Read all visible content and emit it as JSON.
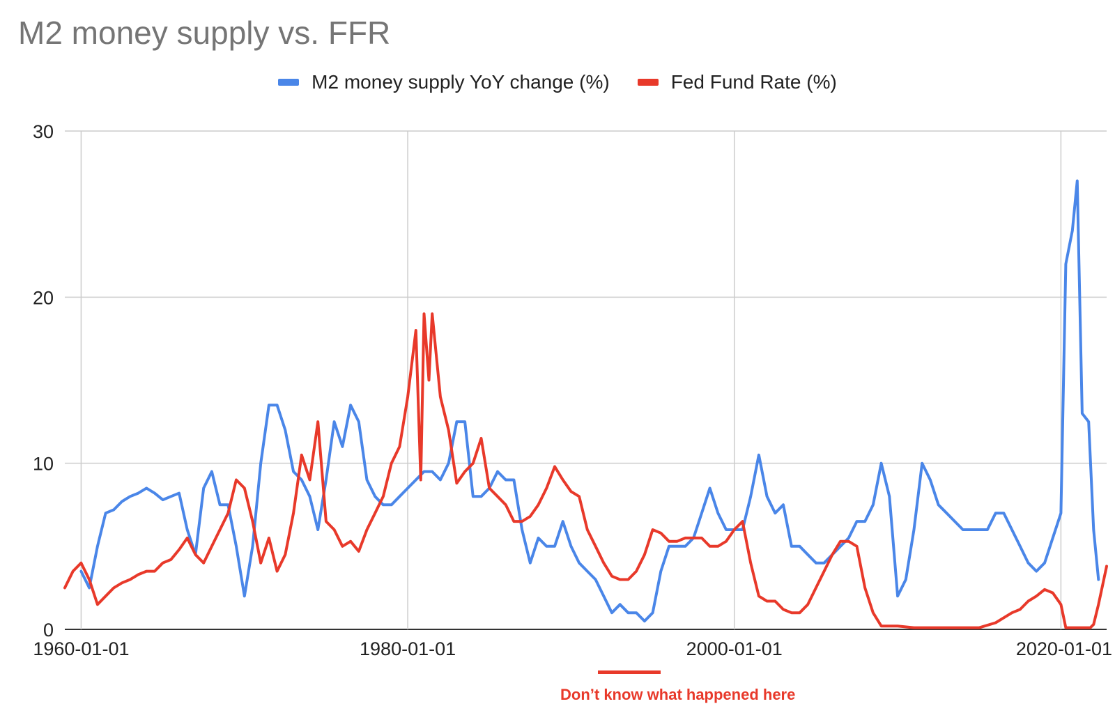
{
  "chart_data": {
    "type": "line",
    "title": "M2 money supply vs. FFR",
    "ylim": [
      0,
      30
    ],
    "yticks": [
      "0",
      "10",
      "20",
      "30"
    ],
    "xticks": [
      "1960-01-01",
      "1980-01-01",
      "2000-01-01",
      "2020-01-01"
    ],
    "x_range": [
      1959,
      2022.8
    ],
    "grid": true,
    "legend_position": "top",
    "series": [
      {
        "name": "M2 money supply YoY change (%)",
        "color": "#4a86e8",
        "points": [
          [
            1960,
            3.5
          ],
          [
            1960.5,
            2.5
          ],
          [
            1961,
            5
          ],
          [
            1961.5,
            7
          ],
          [
            1962,
            7.2
          ],
          [
            1962.5,
            7.7
          ],
          [
            1963,
            8
          ],
          [
            1963.5,
            8.2
          ],
          [
            1964,
            8.5
          ],
          [
            1964.5,
            8.2
          ],
          [
            1965,
            7.8
          ],
          [
            1965.5,
            8
          ],
          [
            1966,
            8.2
          ],
          [
            1966.5,
            6
          ],
          [
            1967,
            4.5
          ],
          [
            1967.5,
            8.5
          ],
          [
            1968,
            9.5
          ],
          [
            1968.5,
            7.5
          ],
          [
            1969,
            7.5
          ],
          [
            1969.5,
            5
          ],
          [
            1970,
            2
          ],
          [
            1970.5,
            5
          ],
          [
            1971,
            10
          ],
          [
            1971.5,
            13.5
          ],
          [
            1972,
            13.5
          ],
          [
            1972.5,
            12
          ],
          [
            1973,
            9.5
          ],
          [
            1973.5,
            9
          ],
          [
            1974,
            8
          ],
          [
            1974.5,
            6
          ],
          [
            1975,
            9
          ],
          [
            1975.5,
            12.5
          ],
          [
            1976,
            11
          ],
          [
            1976.5,
            13.5
          ],
          [
            1977,
            12.5
          ],
          [
            1977.5,
            9
          ],
          [
            1978,
            8
          ],
          [
            1978.5,
            7.5
          ],
          [
            1979,
            7.5
          ],
          [
            1979.5,
            8
          ],
          [
            1980,
            8.5
          ],
          [
            1980.5,
            9
          ],
          [
            1981,
            9.5
          ],
          [
            1981.5,
            9.5
          ],
          [
            1982,
            9
          ],
          [
            1982.5,
            10
          ],
          [
            1983,
            12.5
          ],
          [
            1983.5,
            12.5
          ],
          [
            1984,
            8
          ],
          [
            1984.5,
            8
          ],
          [
            1985,
            8.5
          ],
          [
            1985.5,
            9.5
          ],
          [
            1986,
            9
          ],
          [
            1986.5,
            9
          ],
          [
            1987,
            6
          ],
          [
            1987.5,
            4
          ],
          [
            1988,
            5.5
          ],
          [
            1988.5,
            5
          ],
          [
            1989,
            5
          ],
          [
            1989.5,
            6.5
          ],
          [
            1990,
            5
          ],
          [
            1990.5,
            4
          ],
          [
            1991,
            3.5
          ],
          [
            1991.5,
            3
          ],
          [
            1992,
            2
          ],
          [
            1992.5,
            1
          ],
          [
            1993,
            1.5
          ],
          [
            1993.5,
            1
          ],
          [
            1994,
            1
          ],
          [
            1994.5,
            0.5
          ],
          [
            1995,
            1
          ],
          [
            1995.5,
            3.5
          ],
          [
            1996,
            5
          ],
          [
            1996.5,
            5
          ],
          [
            1997,
            5
          ],
          [
            1997.5,
            5.5
          ],
          [
            1998,
            7
          ],
          [
            1998.5,
            8.5
          ],
          [
            1999,
            7
          ],
          [
            1999.5,
            6
          ],
          [
            2000,
            6
          ],
          [
            2000.5,
            6
          ],
          [
            2001,
            8
          ],
          [
            2001.5,
            10.5
          ],
          [
            2002,
            8
          ],
          [
            2002.5,
            7
          ],
          [
            2003,
            7.5
          ],
          [
            2003.5,
            5
          ],
          [
            2004,
            5
          ],
          [
            2004.5,
            4.5
          ],
          [
            2005,
            4
          ],
          [
            2005.5,
            4
          ],
          [
            2006,
            4.5
          ],
          [
            2006.5,
            5
          ],
          [
            2007,
            5.5
          ],
          [
            2007.5,
            6.5
          ],
          [
            2008,
            6.5
          ],
          [
            2008.5,
            7.5
          ],
          [
            2009,
            10
          ],
          [
            2009.5,
            8
          ],
          [
            2010,
            2
          ],
          [
            2010.5,
            3
          ],
          [
            2011,
            6
          ],
          [
            2011.5,
            10
          ],
          [
            2012,
            9
          ],
          [
            2012.5,
            7.5
          ],
          [
            2013,
            7
          ],
          [
            2013.5,
            6.5
          ],
          [
            2014,
            6
          ],
          [
            2014.5,
            6
          ],
          [
            2015,
            6
          ],
          [
            2015.5,
            6
          ],
          [
            2016,
            7
          ],
          [
            2016.5,
            7
          ],
          [
            2017,
            6
          ],
          [
            2017.5,
            5
          ],
          [
            2018,
            4
          ],
          [
            2018.5,
            3.5
          ],
          [
            2019,
            4
          ],
          [
            2019.5,
            5.5
          ],
          [
            2020,
            7
          ],
          [
            2020.3,
            22
          ],
          [
            2020.7,
            24
          ],
          [
            2021,
            27
          ],
          [
            2021.3,
            13
          ],
          [
            2021.7,
            12.5
          ],
          [
            2022,
            6
          ],
          [
            2022.3,
            3
          ]
        ]
      },
      {
        "name": "Fed Fund Rate (%)",
        "color": "#e8392a",
        "points": [
          [
            1959,
            2.5
          ],
          [
            1959.5,
            3.5
          ],
          [
            1960,
            4
          ],
          [
            1960.5,
            3
          ],
          [
            1961,
            1.5
          ],
          [
            1961.5,
            2
          ],
          [
            1962,
            2.5
          ],
          [
            1962.5,
            2.8
          ],
          [
            1963,
            3
          ],
          [
            1963.5,
            3.3
          ],
          [
            1964,
            3.5
          ],
          [
            1964.5,
            3.5
          ],
          [
            1965,
            4
          ],
          [
            1965.5,
            4.2
          ],
          [
            1966,
            4.8
          ],
          [
            1966.5,
            5.5
          ],
          [
            1967,
            4.5
          ],
          [
            1967.5,
            4
          ],
          [
            1968,
            5
          ],
          [
            1968.5,
            6
          ],
          [
            1969,
            7
          ],
          [
            1969.5,
            9
          ],
          [
            1970,
            8.5
          ],
          [
            1970.5,
            6.5
          ],
          [
            1971,
            4
          ],
          [
            1971.5,
            5.5
          ],
          [
            1972,
            3.5
          ],
          [
            1972.5,
            4.5
          ],
          [
            1973,
            7
          ],
          [
            1973.5,
            10.5
          ],
          [
            1974,
            9
          ],
          [
            1974.5,
            12.5
          ],
          [
            1975,
            6.5
          ],
          [
            1975.5,
            6
          ],
          [
            1976,
            5
          ],
          [
            1976.5,
            5.3
          ],
          [
            1977,
            4.7
          ],
          [
            1977.5,
            6
          ],
          [
            1978,
            7
          ],
          [
            1978.5,
            8
          ],
          [
            1979,
            10
          ],
          [
            1979.5,
            11
          ],
          [
            1980,
            14
          ],
          [
            1980.5,
            18
          ],
          [
            1980.8,
            9
          ],
          [
            1981,
            19
          ],
          [
            1981.3,
            15
          ],
          [
            1981.5,
            19
          ],
          [
            1982,
            14
          ],
          [
            1982.5,
            12
          ],
          [
            1983,
            8.8
          ],
          [
            1983.5,
            9.5
          ],
          [
            1984,
            10
          ],
          [
            1984.5,
            11.5
          ],
          [
            1985,
            8.5
          ],
          [
            1985.5,
            8
          ],
          [
            1986,
            7.5
          ],
          [
            1986.5,
            6.5
          ],
          [
            1987,
            6.5
          ],
          [
            1987.5,
            6.8
          ],
          [
            1988,
            7.5
          ],
          [
            1988.5,
            8.5
          ],
          [
            1989,
            9.8
          ],
          [
            1989.5,
            9
          ],
          [
            1990,
            8.3
          ],
          [
            1990.5,
            8
          ],
          [
            1991,
            6
          ],
          [
            1991.5,
            5
          ],
          [
            1992,
            4
          ],
          [
            1992.5,
            3.2
          ],
          [
            1993,
            3
          ],
          [
            1993.5,
            3
          ],
          [
            1994,
            3.5
          ],
          [
            1994.5,
            4.5
          ],
          [
            1995,
            6
          ],
          [
            1995.5,
            5.8
          ],
          [
            1996,
            5.3
          ],
          [
            1996.5,
            5.3
          ],
          [
            1997,
            5.5
          ],
          [
            1997.5,
            5.5
          ],
          [
            1998,
            5.5
          ],
          [
            1998.5,
            5
          ],
          [
            1999,
            5
          ],
          [
            1999.5,
            5.3
          ],
          [
            2000,
            6
          ],
          [
            2000.5,
            6.5
          ],
          [
            2001,
            4
          ],
          [
            2001.5,
            2
          ],
          [
            2002,
            1.7
          ],
          [
            2002.5,
            1.7
          ],
          [
            2003,
            1.2
          ],
          [
            2003.5,
            1
          ],
          [
            2004,
            1
          ],
          [
            2004.5,
            1.5
          ],
          [
            2005,
            2.5
          ],
          [
            2005.5,
            3.5
          ],
          [
            2006,
            4.5
          ],
          [
            2006.5,
            5.3
          ],
          [
            2007,
            5.3
          ],
          [
            2007.5,
            5
          ],
          [
            2008,
            2.5
          ],
          [
            2008.5,
            1
          ],
          [
            2009,
            0.2
          ],
          [
            2010,
            0.2
          ],
          [
            2011,
            0.1
          ],
          [
            2012,
            0.1
          ],
          [
            2013,
            0.1
          ],
          [
            2014,
            0.1
          ],
          [
            2015,
            0.1
          ],
          [
            2016,
            0.4
          ],
          [
            2017,
            1
          ],
          [
            2017.5,
            1.2
          ],
          [
            2018,
            1.7
          ],
          [
            2018.5,
            2
          ],
          [
            2019,
            2.4
          ],
          [
            2019.5,
            2.2
          ],
          [
            2020,
            1.5
          ],
          [
            2020.3,
            0.1
          ],
          [
            2021,
            0.1
          ],
          [
            2021.8,
            0.1
          ],
          [
            2022,
            0.3
          ],
          [
            2022.3,
            1.5
          ],
          [
            2022.8,
            3.8
          ]
        ]
      }
    ]
  },
  "annotation": {
    "text": "Don’t know what happened here",
    "color": "#e8392a"
  }
}
